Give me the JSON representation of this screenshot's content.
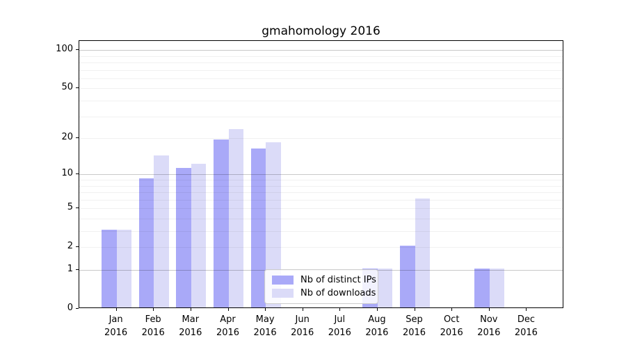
{
  "title": "gmahomology 2016",
  "chart_data": {
    "type": "bar",
    "title": "gmahomology 2016",
    "yscale": "log1p",
    "ylim": [
      0,
      100
    ],
    "yticks": [
      0,
      1,
      2,
      5,
      10,
      20,
      50,
      100
    ],
    "major_gridlines": [
      1,
      10,
      100
    ],
    "minor_gridlines": [
      2,
      3,
      4,
      5,
      6,
      7,
      8,
      9,
      20,
      30,
      40,
      50,
      60,
      70,
      80,
      90
    ],
    "months": [
      "Jan",
      "Feb",
      "Mar",
      "Apr",
      "May",
      "Jun",
      "Jul",
      "Aug",
      "Sep",
      "Oct",
      "Nov",
      "Dec"
    ],
    "year": "2016",
    "series": [
      {
        "name": "Nb of distinct IPs",
        "color": "#a9a9f8",
        "values": [
          3,
          9,
          11,
          19,
          16,
          0,
          0,
          1,
          2,
          0,
          1,
          0
        ]
      },
      {
        "name": "Nb of downloads",
        "color": "#dbdbf8",
        "values": [
          3,
          14,
          12,
          23,
          18,
          0,
          0,
          1,
          6,
          0,
          1,
          0
        ]
      }
    ],
    "legend_position": "lower-center",
    "grid": true
  },
  "colors": {
    "background": "#ffffff",
    "axis": "#000000",
    "text": "#000000",
    "major_grid": "#c8c8c8",
    "minor_grid": "#f0f0f0",
    "legend_border": "#cccccc"
  }
}
